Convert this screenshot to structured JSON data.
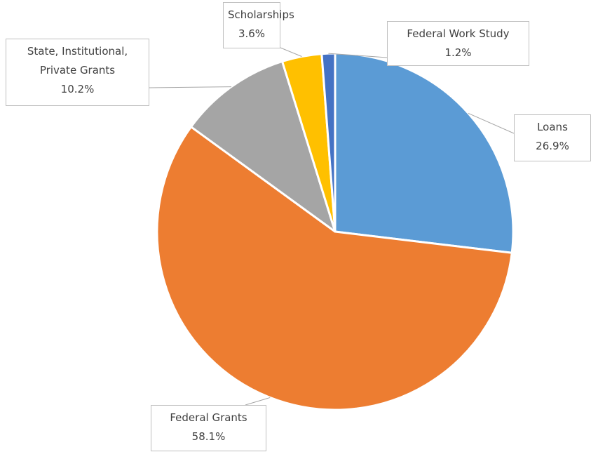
{
  "chart_data": {
    "type": "pie",
    "categories": [
      "Loans",
      "Federal Grants",
      "State, Institutional, Private Grants",
      "Scholarships",
      "Federal Work Study"
    ],
    "values": [
      26.9,
      58.1,
      10.2,
      3.6,
      1.2
    ],
    "value_labels": [
      "26.9%",
      "58.1%",
      "10.2%",
      "3.6%",
      "1.2%"
    ],
    "colors": [
      "#5b9bd5",
      "#ed7d31",
      "#a5a5a5",
      "#ffc000",
      "#4472c4"
    ]
  }
}
